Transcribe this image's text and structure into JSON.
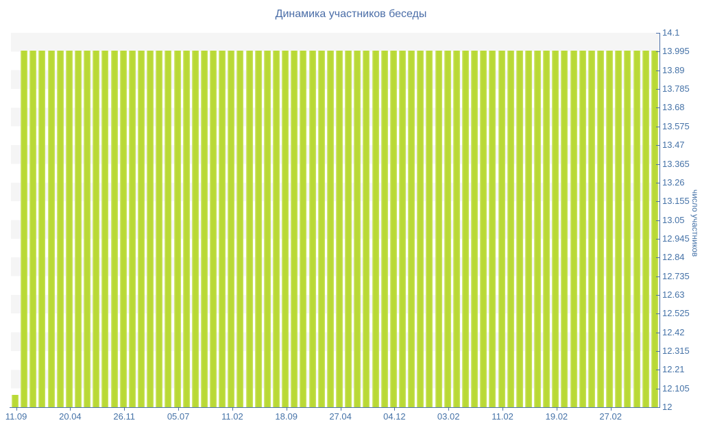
{
  "title": "Динамика участников беседы",
  "colors": {
    "bar": "#b9d936",
    "bar_highlight": "#d6e982",
    "axis_line": "#4a6fa8",
    "label_text": "#4572a7",
    "title_text": "#4a6da7",
    "band_gray": "#f5f5f5",
    "background": "#ffffff"
  },
  "chart_data": {
    "type": "bar",
    "title": "Динамика участников беседы",
    "xlabel": "",
    "ylabel": "число участников",
    "ylim": [
      12,
      14.1
    ],
    "y_tick_step": 0.105,
    "grid": "alternating-horizontal-bands",
    "legend_position": "none",
    "y_tick_labels": [
      "14.1",
      "13.995",
      "13.89",
      "13.785",
      "13.68",
      "13.575",
      "13.47",
      "13.365",
      "13.26",
      "13.155",
      "13.05",
      "12.945",
      "12.84",
      "12.735",
      "12.63",
      "12.525",
      "12.42",
      "12.315",
      "12.21",
      "12.105",
      "12"
    ],
    "x_tick_labels": [
      "11.09",
      "20.04",
      "26.11",
      "05.07",
      "11.02",
      "18.09",
      "27.04",
      "04.12",
      "03.02",
      "11.02",
      "19.02",
      "27.02"
    ],
    "x_label_every_n_bars": 6,
    "bar_count": 72,
    "values": [
      12,
      14,
      14,
      14,
      14,
      14,
      14,
      14,
      14,
      14,
      14,
      14,
      14,
      14,
      14,
      14,
      14,
      14,
      14,
      14,
      14,
      14,
      14,
      14,
      14,
      14,
      14,
      14,
      14,
      14,
      14,
      14,
      14,
      14,
      14,
      14,
      14,
      14,
      14,
      14,
      14,
      14,
      14,
      14,
      14,
      14,
      14,
      14,
      14,
      14,
      14,
      14,
      14,
      14,
      14,
      14,
      14,
      14,
      14,
      14,
      14,
      14,
      14,
      14,
      14,
      14,
      14,
      14,
      14,
      14,
      14,
      14
    ]
  }
}
